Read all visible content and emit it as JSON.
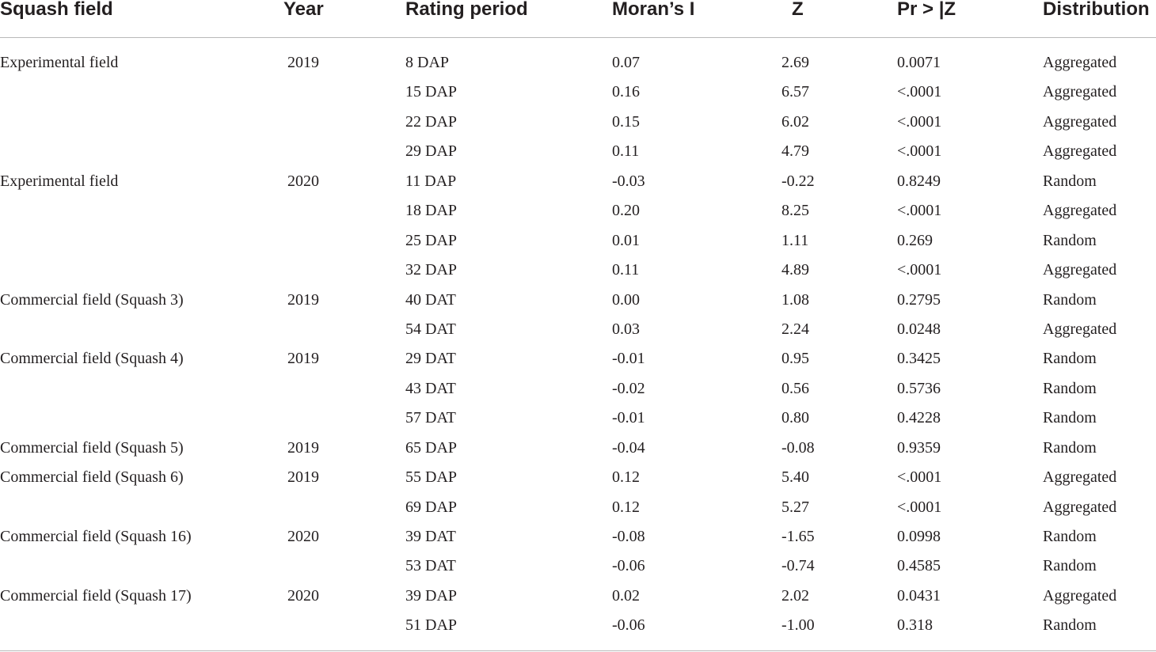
{
  "table": {
    "headers": {
      "field": "Squash field",
      "year": "Year",
      "period": "Rating period",
      "moran": "Moran’s I",
      "z": "Z",
      "pr": "Pr > |Z",
      "distribution": "Distribution"
    },
    "rows": [
      {
        "field": "Experimental field",
        "year": "2019",
        "period": "8 DAP",
        "moran": "0.07",
        "z": "2.69",
        "pr": "0.0071",
        "distribution": "Aggregated"
      },
      {
        "field": "",
        "year": "",
        "period": "15 DAP",
        "moran": "0.16",
        "z": "6.57",
        "pr": "<.0001",
        "distribution": "Aggregated"
      },
      {
        "field": "",
        "year": "",
        "period": "22 DAP",
        "moran": "0.15",
        "z": "6.02",
        "pr": "<.0001",
        "distribution": "Aggregated"
      },
      {
        "field": "",
        "year": "",
        "period": "29 DAP",
        "moran": "0.11",
        "z": "4.79",
        "pr": "<.0001",
        "distribution": "Aggregated"
      },
      {
        "field": "Experimental field",
        "year": "2020",
        "period": "11 DAP",
        "moran": "-0.03",
        "z": "-0.22",
        "pr": "0.8249",
        "distribution": "Random"
      },
      {
        "field": "",
        "year": "",
        "period": "18 DAP",
        "moran": "0.20",
        "z": "8.25",
        "pr": "<.0001",
        "distribution": "Aggregated"
      },
      {
        "field": "",
        "year": "",
        "period": "25 DAP",
        "moran": "0.01",
        "z": "1.11",
        "pr": "0.269",
        "distribution": "Random"
      },
      {
        "field": "",
        "year": "",
        "period": "32 DAP",
        "moran": "0.11",
        "z": "4.89",
        "pr": "<.0001",
        "distribution": "Aggregated"
      },
      {
        "field": "Commercial field (Squash 3)",
        "year": "2019",
        "period": "40 DAT",
        "moran": "0.00",
        "z": "1.08",
        "pr": "0.2795",
        "distribution": "Random"
      },
      {
        "field": "",
        "year": "",
        "period": "54 DAT",
        "moran": "0.03",
        "z": "2.24",
        "pr": "0.0248",
        "distribution": "Aggregated"
      },
      {
        "field": "Commercial field (Squash 4)",
        "year": "2019",
        "period": "29 DAT",
        "moran": "-0.01",
        "z": "0.95",
        "pr": "0.3425",
        "distribution": "Random"
      },
      {
        "field": "",
        "year": "",
        "period": "43 DAT",
        "moran": "-0.02",
        "z": "0.56",
        "pr": "0.5736",
        "distribution": "Random"
      },
      {
        "field": "",
        "year": "",
        "period": "57 DAT",
        "moran": "-0.01",
        "z": "0.80",
        "pr": "0.4228",
        "distribution": "Random"
      },
      {
        "field": "Commercial field (Squash 5)",
        "year": "2019",
        "period": "65 DAP",
        "moran": "-0.04",
        "z": "-0.08",
        "pr": "0.9359",
        "distribution": "Random"
      },
      {
        "field": "Commercial field (Squash 6)",
        "year": "2019",
        "period": "55 DAP",
        "moran": "0.12",
        "z": "5.40",
        "pr": "<.0001",
        "distribution": "Aggregated"
      },
      {
        "field": "",
        "year": "",
        "period": "69 DAP",
        "moran": "0.12",
        "z": "5.27",
        "pr": "<.0001",
        "distribution": "Aggregated"
      },
      {
        "field": "Commercial field (Squash 16)",
        "year": "2020",
        "period": "39 DAT",
        "moran": "-0.08",
        "z": "-1.65",
        "pr": "0.0998",
        "distribution": "Random"
      },
      {
        "field": "",
        "year": "",
        "period": "53 DAT",
        "moran": "-0.06",
        "z": "-0.74",
        "pr": "0.4585",
        "distribution": "Random"
      },
      {
        "field": "Commercial field (Squash 17)",
        "year": "2020",
        "period": "39 DAP",
        "moran": "0.02",
        "z": "2.02",
        "pr": "0.0431",
        "distribution": "Aggregated"
      },
      {
        "field": "",
        "year": "",
        "period": "51 DAP",
        "moran": "-0.06",
        "z": "-1.00",
        "pr": "0.318",
        "distribution": "Random"
      }
    ]
  }
}
